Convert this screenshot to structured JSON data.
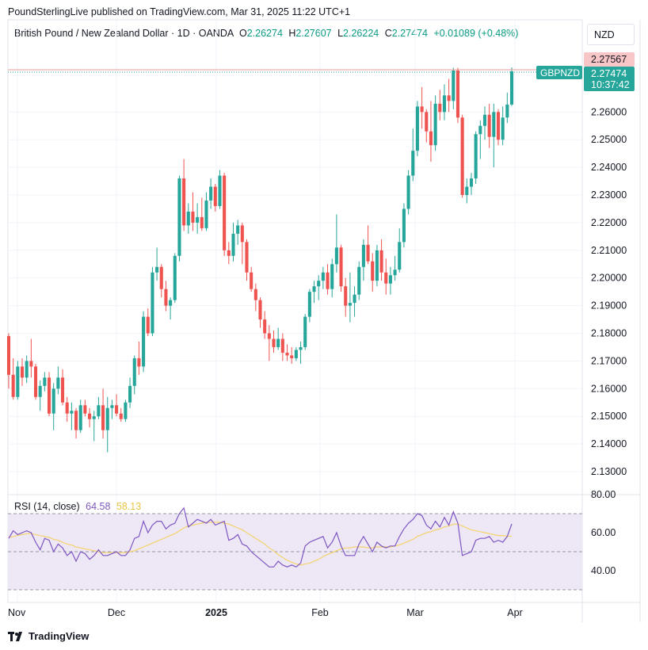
{
  "header": {
    "published": "PoundSterlingLive published on TradingView.com, Mar 31, 2025 11:22 UTC+1"
  },
  "symbol": {
    "name": "British Pound / New Zealand Dollar · 1D · OANDA",
    "o_label": "O",
    "o_value": "2.26274",
    "h_label": "H",
    "h_value": "2.27607",
    "l_label": "L",
    "l_value": "2.26224",
    "c_label": "C",
    "c_value": "2.27474",
    "change": "+0.01089 (+0.48%)"
  },
  "currency_button": "NZD",
  "price_tags": {
    "high_line": "2.27567",
    "ticker": "GBPNZD",
    "last": "2.27474",
    "countdown": "10:37:42"
  },
  "rsi": {
    "title": "RSI (14, close)",
    "rsi_value": "64.58",
    "ma_value": "58.13",
    "axis_ticks": [
      "80.00",
      "60.00",
      "40.00"
    ]
  },
  "footer": {
    "brand": "TradingView"
  },
  "colors": {
    "up": "#26a69a",
    "down": "#ef5350",
    "rsi": "#7e57c2",
    "rsi_ma": "#f5d36a",
    "band": "#ede7f6"
  },
  "chart_data": {
    "type": "candlestick",
    "ylim": [
      2.125,
      2.282
    ],
    "y_ticks": [
      "2.13000",
      "2.14000",
      "2.15000",
      "2.16000",
      "2.17000",
      "2.18000",
      "2.19000",
      "2.20000",
      "2.21000",
      "2.22000",
      "2.23000",
      "2.24000",
      "2.25000",
      "2.26000"
    ],
    "x_ticks": [
      "Nov",
      "Dec",
      "2025",
      "Feb",
      "Mar",
      "Apr"
    ],
    "candles": [
      [
        2.179,
        2.18,
        2.16,
        2.165
      ],
      [
        2.165,
        2.171,
        2.156,
        2.157
      ],
      [
        2.157,
        2.17,
        2.156,
        2.168
      ],
      [
        2.168,
        2.171,
        2.161,
        2.164
      ],
      [
        2.164,
        2.172,
        2.162,
        2.17
      ],
      [
        2.17,
        2.178,
        2.164,
        2.168
      ],
      [
        2.168,
        2.169,
        2.156,
        2.157
      ],
      [
        2.157,
        2.163,
        2.152,
        2.161
      ],
      [
        2.161,
        2.166,
        2.159,
        2.164
      ],
      [
        2.164,
        2.166,
        2.15,
        2.151
      ],
      [
        2.151,
        2.162,
        2.145,
        2.16
      ],
      [
        2.16,
        2.168,
        2.158,
        2.164
      ],
      [
        2.164,
        2.167,
        2.154,
        2.155
      ],
      [
        2.155,
        2.157,
        2.148,
        2.151
      ],
      [
        2.151,
        2.155,
        2.145,
        2.152
      ],
      [
        2.152,
        2.153,
        2.142,
        2.145
      ],
      [
        2.145,
        2.156,
        2.144,
        2.154
      ],
      [
        2.154,
        2.156,
        2.15,
        2.151
      ],
      [
        2.151,
        2.153,
        2.146,
        2.149
      ],
      [
        2.149,
        2.152,
        2.141,
        2.15
      ],
      [
        2.15,
        2.157,
        2.149,
        2.154
      ],
      [
        2.154,
        2.16,
        2.142,
        2.145
      ],
      [
        2.145,
        2.157,
        2.137,
        2.153
      ],
      [
        2.153,
        2.156,
        2.149,
        2.154
      ],
      [
        2.154,
        2.158,
        2.15,
        2.151
      ],
      [
        2.151,
        2.153,
        2.148,
        2.149
      ],
      [
        2.149,
        2.156,
        2.148,
        2.155
      ],
      [
        2.155,
        2.164,
        2.153,
        2.161
      ],
      [
        2.161,
        2.172,
        2.158,
        2.171
      ],
      [
        2.171,
        2.177,
        2.165,
        2.168
      ],
      [
        2.168,
        2.188,
        2.166,
        2.186
      ],
      [
        2.186,
        2.189,
        2.179,
        2.18
      ],
      [
        2.18,
        2.204,
        2.179,
        2.202
      ],
      [
        2.202,
        2.211,
        2.199,
        2.204
      ],
      [
        2.204,
        2.205,
        2.193,
        2.196
      ],
      [
        2.196,
        2.199,
        2.188,
        2.19
      ],
      [
        2.19,
        2.193,
        2.185,
        2.192
      ],
      [
        2.192,
        2.209,
        2.191,
        2.208
      ],
      [
        2.208,
        2.237,
        2.206,
        2.236
      ],
      [
        2.236,
        2.243,
        2.217,
        2.219
      ],
      [
        2.219,
        2.227,
        2.216,
        2.224
      ],
      [
        2.224,
        2.231,
        2.217,
        2.22
      ],
      [
        2.22,
        2.227,
        2.216,
        2.222
      ],
      [
        2.222,
        2.229,
        2.217,
        2.218
      ],
      [
        2.218,
        2.231,
        2.217,
        2.228
      ],
      [
        2.228,
        2.236,
        2.225,
        2.233
      ],
      [
        2.233,
        2.234,
        2.224,
        2.226
      ],
      [
        2.226,
        2.239,
        2.225,
        2.237
      ],
      [
        2.237,
        2.238,
        2.208,
        2.21
      ],
      [
        2.21,
        2.213,
        2.205,
        2.208
      ],
      [
        2.208,
        2.22,
        2.206,
        2.216
      ],
      [
        2.216,
        2.221,
        2.212,
        2.219
      ],
      [
        2.219,
        2.22,
        2.205,
        2.213
      ],
      [
        2.213,
        2.214,
        2.199,
        2.202
      ],
      [
        2.202,
        2.204,
        2.195,
        2.196
      ],
      [
        2.196,
        2.198,
        2.188,
        2.192
      ],
      [
        2.192,
        2.193,
        2.182,
        2.185
      ],
      [
        2.185,
        2.188,
        2.178,
        2.18
      ],
      [
        2.18,
        2.183,
        2.17,
        2.178
      ],
      [
        2.178,
        2.181,
        2.173,
        2.175
      ],
      [
        2.175,
        2.182,
        2.174,
        2.178
      ],
      [
        2.178,
        2.18,
        2.17,
        2.173
      ],
      [
        2.173,
        2.176,
        2.17,
        2.172
      ],
      [
        2.172,
        2.175,
        2.169,
        2.171
      ],
      [
        2.171,
        2.175,
        2.17,
        2.174
      ],
      [
        2.174,
        2.177,
        2.169,
        2.175
      ],
      [
        2.175,
        2.187,
        2.174,
        2.186
      ],
      [
        2.186,
        2.196,
        2.184,
        2.195
      ],
      [
        2.195,
        2.199,
        2.191,
        2.197
      ],
      [
        2.197,
        2.201,
        2.192,
        2.199
      ],
      [
        2.199,
        2.204,
        2.196,
        2.202
      ],
      [
        2.202,
        2.205,
        2.194,
        2.196
      ],
      [
        2.196,
        2.207,
        2.193,
        2.205
      ],
      [
        2.205,
        2.223,
        2.202,
        2.211
      ],
      [
        2.211,
        2.212,
        2.195,
        2.197
      ],
      [
        2.197,
        2.2,
        2.186,
        2.19
      ],
      [
        2.19,
        2.202,
        2.184,
        2.191
      ],
      [
        2.191,
        2.197,
        2.186,
        2.194
      ],
      [
        2.194,
        2.206,
        2.192,
        2.204
      ],
      [
        2.204,
        2.214,
        2.199,
        2.212
      ],
      [
        2.212,
        2.219,
        2.205,
        2.206
      ],
      [
        2.206,
        2.209,
        2.195,
        2.199
      ],
      [
        2.199,
        2.212,
        2.197,
        2.21
      ],
      [
        2.21,
        2.214,
        2.199,
        2.202
      ],
      [
        2.202,
        2.207,
        2.194,
        2.198
      ],
      [
        2.198,
        2.204,
        2.194,
        2.201
      ],
      [
        2.201,
        2.208,
        2.199,
        2.203
      ],
      [
        2.203,
        2.218,
        2.202,
        2.213
      ],
      [
        2.213,
        2.227,
        2.211,
        2.225
      ],
      [
        2.225,
        2.239,
        2.223,
        2.237
      ],
      [
        2.237,
        2.254,
        2.235,
        2.246
      ],
      [
        2.246,
        2.264,
        2.244,
        2.262
      ],
      [
        2.262,
        2.269,
        2.254,
        2.26
      ],
      [
        2.26,
        2.261,
        2.249,
        2.253
      ],
      [
        2.253,
        2.264,
        2.242,
        2.248
      ],
      [
        2.248,
        2.266,
        2.246,
        2.263
      ],
      [
        2.263,
        2.268,
        2.257,
        2.26
      ],
      [
        2.26,
        2.27,
        2.257,
        2.266
      ],
      [
        2.266,
        2.272,
        2.26,
        2.264
      ],
      [
        2.264,
        2.276,
        2.261,
        2.275
      ],
      [
        2.275,
        2.276,
        2.256,
        2.258
      ],
      [
        2.258,
        2.259,
        2.229,
        2.23
      ],
      [
        2.23,
        2.236,
        2.227,
        2.233
      ],
      [
        2.233,
        2.238,
        2.23,
        2.236
      ],
      [
        2.236,
        2.253,
        2.234,
        2.252
      ],
      [
        2.252,
        2.257,
        2.243,
        2.255
      ],
      [
        2.255,
        2.262,
        2.25,
        2.259
      ],
      [
        2.259,
        2.263,
        2.247,
        2.251
      ],
      [
        2.251,
        2.263,
        2.24,
        2.26
      ],
      [
        2.26,
        2.261,
        2.248,
        2.25
      ],
      [
        2.25,
        2.262,
        2.248,
        2.258
      ],
      [
        2.258,
        2.267,
        2.256,
        2.2627
      ],
      [
        2.2627,
        2.2761,
        2.2622,
        2.2747
      ]
    ],
    "rsi_ylim": [
      30,
      85
    ],
    "rsi_bands": [
      70,
      50,
      30
    ],
    "rsi_values": [
      57,
      61,
      59,
      60,
      61,
      60,
      55,
      51,
      57,
      56,
      50,
      54,
      52,
      48,
      50,
      45,
      50,
      49,
      46,
      48,
      51,
      48,
      48,
      49,
      50,
      48,
      48,
      51,
      57,
      58,
      66,
      60,
      64,
      66,
      66,
      62,
      64,
      65,
      70,
      73,
      63,
      65,
      67,
      66,
      65,
      67,
      64,
      65,
      66,
      56,
      57,
      59,
      54,
      53,
      50,
      48,
      46,
      44,
      42,
      42,
      45,
      43,
      42,
      43,
      42,
      44,
      53,
      55,
      56,
      57,
      58,
      52,
      55,
      60,
      53,
      48,
      48,
      48,
      54,
      58,
      54,
      50,
      55,
      53,
      52,
      53,
      53,
      58,
      62,
      65,
      67,
      70,
      69,
      64,
      62,
      66,
      63,
      68,
      64,
      71,
      65,
      48,
      49,
      50,
      56,
      57,
      57,
      58,
      55,
      56,
      55,
      58,
      64.58
    ],
    "rsi_ma_values": [
      57.5,
      58,
      58.5,
      59,
      59.5,
      59.5,
      59,
      58.5,
      58,
      57.5,
      56.5,
      56,
      55,
      54,
      53.5,
      52.5,
      52,
      51.5,
      51,
      50.5,
      50,
      49.5,
      49.5,
      49.5,
      49.5,
      49.5,
      49.5,
      50,
      50.5,
      51.5,
      52.5,
      53.5,
      54.5,
      55.5,
      56.5,
      57.5,
      58.5,
      59.5,
      61,
      62.5,
      63.5,
      64,
      64.5,
      65,
      65.5,
      65.5,
      65.5,
      65.5,
      65,
      64.5,
      63.5,
      62.5,
      61.5,
      60,
      58.5,
      57,
      55.5,
      54,
      52,
      50.5,
      48.5,
      47,
      45.5,
      44.5,
      43.5,
      43,
      43.5,
      44,
      45,
      46,
      47.5,
      48.5,
      49.5,
      50.5,
      51.5,
      52,
      52,
      52.5,
      52.5,
      52.5,
      52,
      52,
      52.5,
      52.5,
      52.5,
      52.5,
      53,
      53.5,
      54.5,
      55.5,
      56.5,
      58,
      59,
      60,
      60.5,
      61.5,
      62,
      63,
      63.5,
      64.5,
      64.5,
      63.5,
      62.5,
      61.5,
      61,
      60.5,
      60,
      59.5,
      59,
      58.5,
      58.5,
      58.2,
      58.13
    ]
  }
}
